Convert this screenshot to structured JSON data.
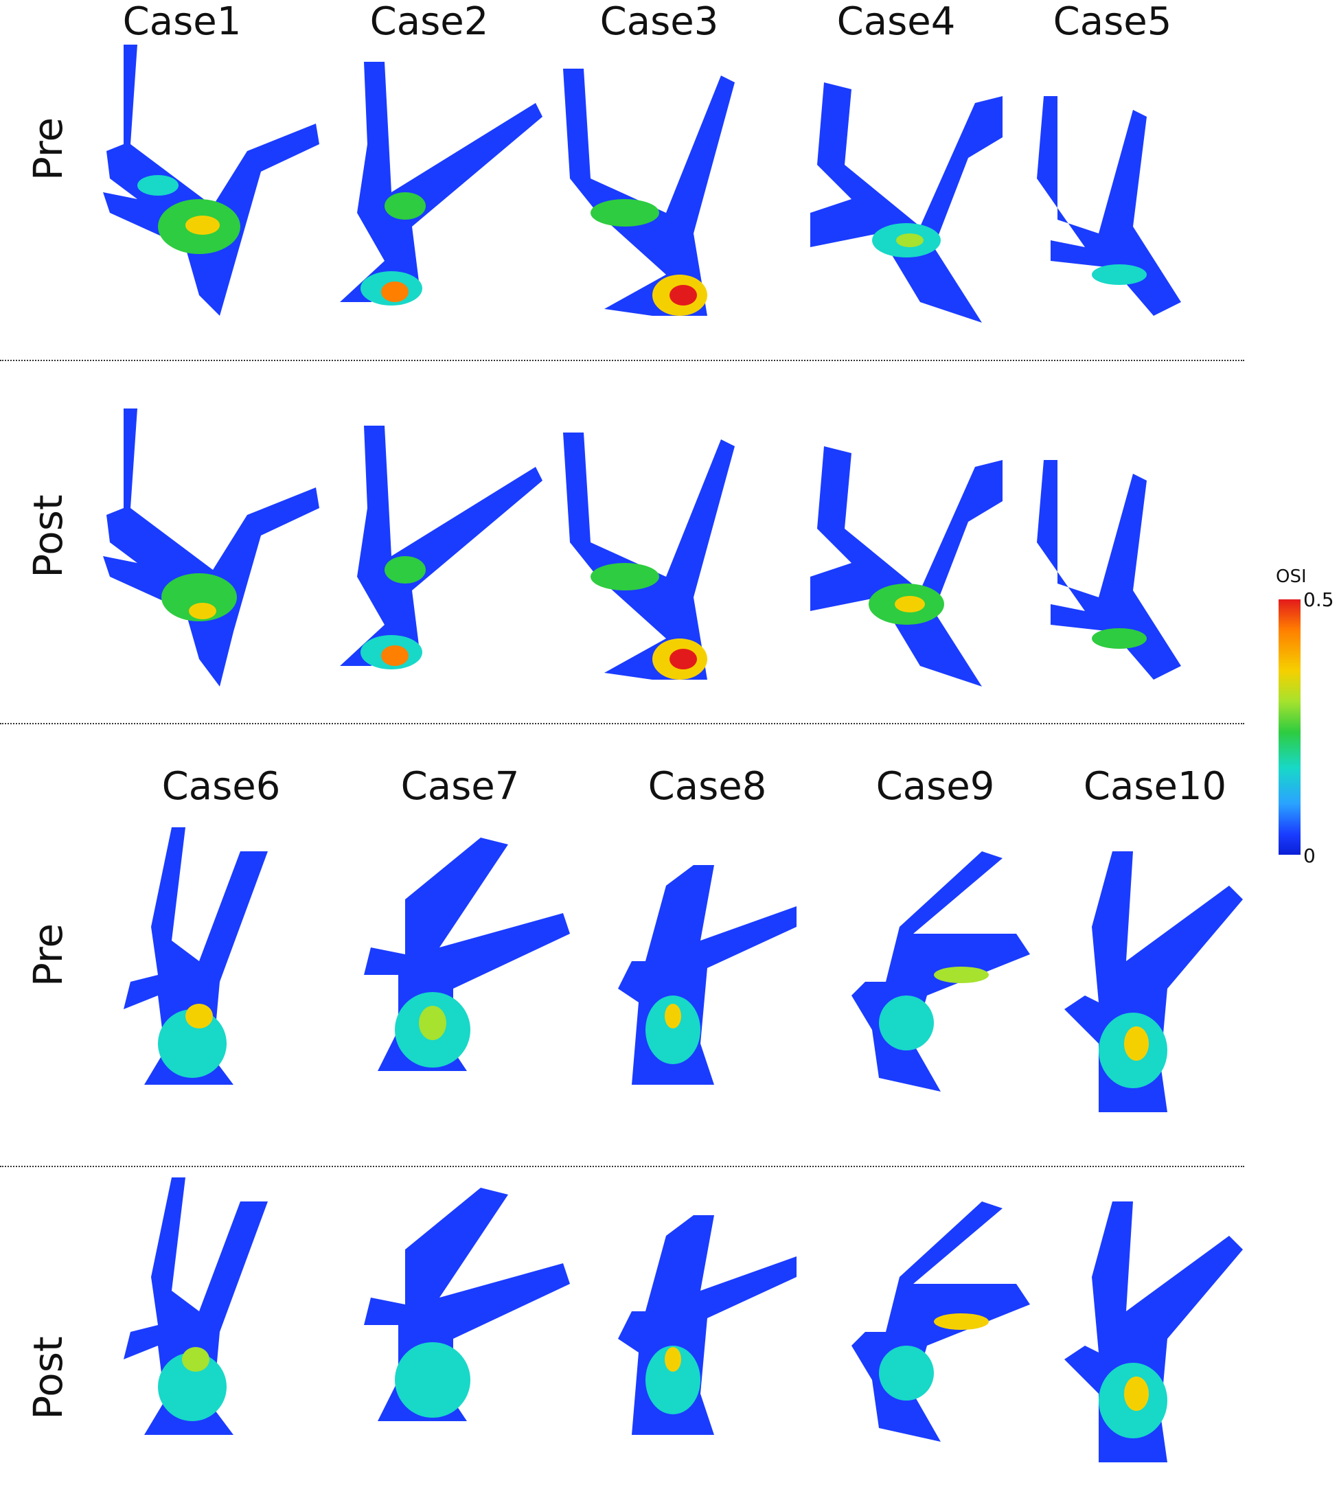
{
  "top_cases": [
    "Case1",
    "Case2",
    "Case3",
    "Case4",
    "Case5"
  ],
  "bottom_cases": [
    "Case6",
    "Case7",
    "Case8",
    "Case9",
    "Case10"
  ],
  "rows": [
    "Pre",
    "Post",
    "Pre",
    "Post"
  ],
  "colorbar": {
    "title": "OSI",
    "max_label": "0.5",
    "min_label": "0",
    "colors": {
      "low": "#0a1fd6",
      "mid": "#2ecc40",
      "high": "#e31a1c"
    }
  }
}
